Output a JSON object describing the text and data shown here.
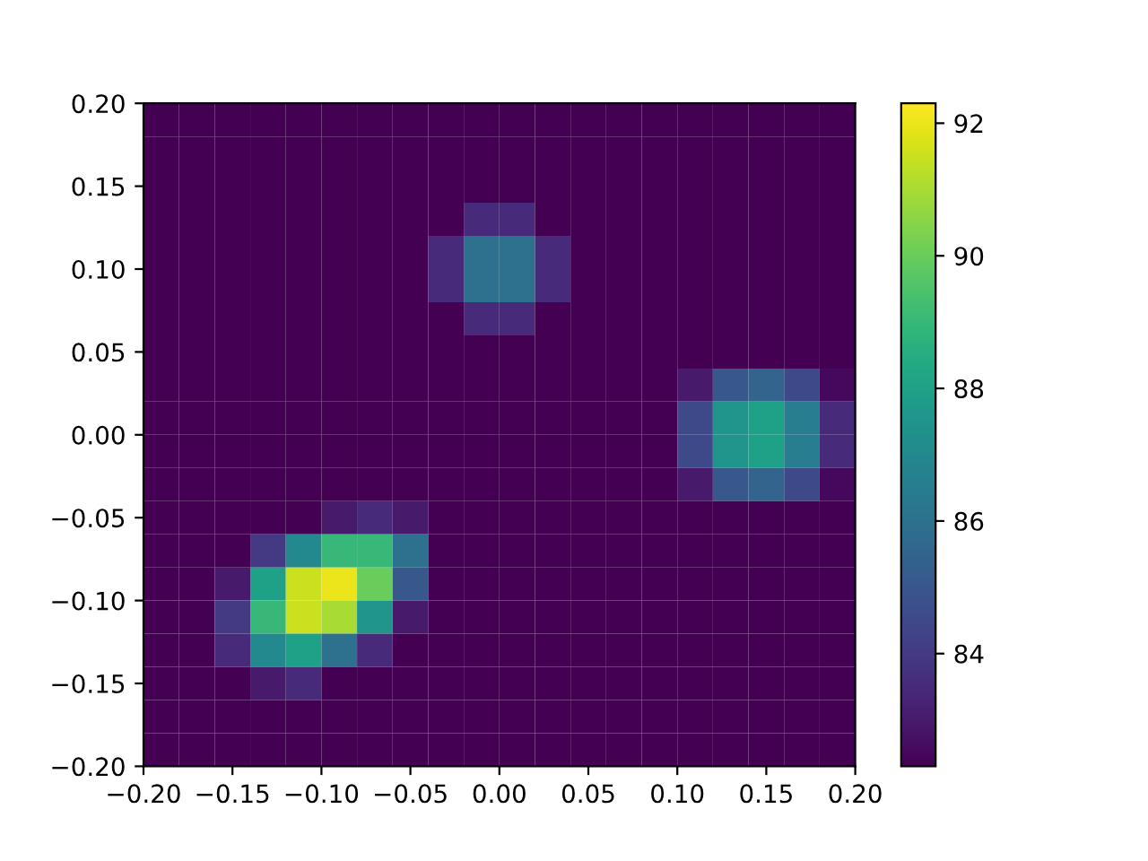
{
  "chart_data": {
    "type": "heatmap",
    "xlim": [
      -0.2,
      0.2
    ],
    "ylim": [
      -0.2,
      0.2
    ],
    "xticks": [
      {
        "value": -0.2,
        "label": "−0.20"
      },
      {
        "value": -0.15,
        "label": "−0.15"
      },
      {
        "value": -0.1,
        "label": "−0.10"
      },
      {
        "value": -0.05,
        "label": "−0.05"
      },
      {
        "value": 0,
        "label": "0.00"
      },
      {
        "value": 0.05,
        "label": "0.05"
      },
      {
        "value": 0.1,
        "label": "0.10"
      },
      {
        "value": 0.15,
        "label": "0.15"
      },
      {
        "value": 0.2,
        "label": "0.20"
      }
    ],
    "yticks": [
      {
        "value": -0.2,
        "label": "−0.20"
      },
      {
        "value": -0.15,
        "label": "−0.15"
      },
      {
        "value": -0.1,
        "label": "−0.10"
      },
      {
        "value": -0.05,
        "label": "−0.05"
      },
      {
        "value": 0,
        "label": "0.00"
      },
      {
        "value": 0.05,
        "label": "0.05"
      },
      {
        "value": 0.1,
        "label": "0.10"
      },
      {
        "value": 0.15,
        "label": "0.15"
      },
      {
        "value": 0.2,
        "label": "0.20"
      }
    ],
    "clim": [
      82.3,
      92.3
    ],
    "cticks": [
      84,
      86,
      88,
      90,
      92
    ],
    "cells": [
      [
        82.3,
        82.3,
        82.3,
        82.3,
        82.3,
        82.3,
        82.3,
        82.3,
        82.3,
        82.3,
        82.3,
        82.3,
        82.3,
        82.3,
        82.3,
        82.3,
        82.3,
        82.3,
        82.3,
        82.3
      ],
      [
        82.3,
        82.3,
        82.3,
        82.3,
        82.3,
        82.3,
        82.3,
        82.3,
        82.3,
        82.3,
        82.3,
        82.3,
        82.3,
        82.3,
        82.3,
        82.3,
        82.3,
        82.3,
        82.3,
        82.3
      ],
      [
        82.3,
        82.3,
        82.3,
        82.3,
        82.3,
        82.3,
        82.3,
        82.3,
        82.3,
        82.3,
        82.3,
        82.3,
        82.3,
        82.3,
        82.3,
        82.3,
        82.3,
        82.3,
        82.3,
        82.3
      ],
      [
        82.3,
        82.3,
        82.3,
        82.3,
        82.3,
        82.3,
        82.3,
        82.3,
        82.3,
        83.5,
        83.5,
        82.3,
        82.3,
        82.3,
        82.3,
        82.3,
        82.3,
        82.3,
        82.3,
        82.3
      ],
      [
        82.3,
        82.3,
        82.3,
        82.3,
        82.3,
        82.3,
        82.3,
        82.3,
        83.5,
        86,
        86,
        83.5,
        82.3,
        82.3,
        82.3,
        82.3,
        82.3,
        82.3,
        82.3,
        82.3
      ],
      [
        82.3,
        82.3,
        82.3,
        82.3,
        82.3,
        82.3,
        82.3,
        82.3,
        83.5,
        86,
        86,
        83.5,
        82.3,
        82.3,
        82.3,
        82.3,
        82.3,
        82.3,
        82.3,
        82.3
      ],
      [
        82.3,
        82.3,
        82.3,
        82.3,
        82.3,
        82.3,
        82.3,
        82.3,
        82.3,
        83.5,
        83.5,
        82.3,
        82.3,
        82.3,
        82.3,
        82.3,
        82.3,
        82.3,
        82.3,
        82.3
      ],
      [
        82.3,
        82.3,
        82.3,
        82.3,
        82.3,
        82.3,
        82.3,
        82.3,
        82.3,
        82.3,
        82.3,
        82.3,
        82.3,
        82.3,
        82.3,
        82.3,
        82.3,
        82.3,
        82.3,
        82.3
      ],
      [
        82.3,
        82.3,
        82.3,
        82.3,
        82.3,
        82.3,
        82.3,
        82.3,
        82.3,
        82.3,
        82.3,
        82.3,
        82.3,
        82.3,
        82.3,
        83,
        85,
        85.5,
        84.5,
        82.5
      ],
      [
        82.3,
        82.3,
        82.3,
        82.3,
        82.3,
        82.3,
        82.3,
        82.3,
        82.3,
        82.3,
        82.3,
        82.3,
        82.3,
        82.3,
        82.3,
        84.5,
        87.5,
        88,
        86.5,
        83.5
      ],
      [
        82.3,
        82.3,
        82.3,
        82.3,
        82.3,
        82.3,
        82.3,
        82.3,
        82.3,
        82.3,
        82.3,
        82.3,
        82.3,
        82.3,
        82.3,
        84.5,
        87.5,
        88,
        86.5,
        83.5
      ],
      [
        82.3,
        82.3,
        82.3,
        82.3,
        82.3,
        82.3,
        82.3,
        82.3,
        82.3,
        82.3,
        82.3,
        82.3,
        82.3,
        82.3,
        82.3,
        83,
        85,
        85.5,
        84.5,
        82.5
      ],
      [
        82.3,
        82.3,
        82.3,
        82.3,
        82.3,
        83,
        83.5,
        83,
        82.3,
        82.3,
        82.3,
        82.3,
        82.3,
        82.3,
        82.3,
        82.3,
        82.3,
        82.3,
        82.3,
        82.3
      ],
      [
        82.3,
        82.3,
        82.3,
        84,
        87,
        89,
        89,
        86,
        82.3,
        82.3,
        82.3,
        82.3,
        82.3,
        82.3,
        82.3,
        82.3,
        82.3,
        82.3,
        82.3,
        82.3
      ],
      [
        82.3,
        82.3,
        83,
        88,
        91.5,
        92,
        90,
        85,
        82.3,
        82.3,
        82.3,
        82.3,
        82.3,
        82.3,
        82.3,
        82.3,
        82.3,
        82.3,
        82.3,
        82.3
      ],
      [
        82.3,
        82.3,
        84,
        89,
        91.5,
        91,
        87.5,
        83,
        82.3,
        82.3,
        82.3,
        82.3,
        82.3,
        82.3,
        82.3,
        82.3,
        82.3,
        82.3,
        82.3,
        82.3
      ],
      [
        82.3,
        82.3,
        83.5,
        87,
        88,
        86,
        83.5,
        82.3,
        82.3,
        82.3,
        82.3,
        82.3,
        82.3,
        82.3,
        82.3,
        82.3,
        82.3,
        82.3,
        82.3,
        82.3
      ],
      [
        82.3,
        82.3,
        82.3,
        83,
        83.5,
        82.3,
        82.3,
        82.3,
        82.3,
        82.3,
        82.3,
        82.3,
        82.3,
        82.3,
        82.3,
        82.3,
        82.3,
        82.3,
        82.3,
        82.3
      ],
      [
        82.3,
        82.3,
        82.3,
        82.3,
        82.3,
        82.3,
        82.3,
        82.3,
        82.3,
        82.3,
        82.3,
        82.3,
        82.3,
        82.3,
        82.3,
        82.3,
        82.3,
        82.3,
        82.3,
        82.3
      ],
      [
        82.3,
        82.3,
        82.3,
        82.3,
        82.3,
        82.3,
        82.3,
        82.3,
        82.3,
        82.3,
        82.3,
        82.3,
        82.3,
        82.3,
        82.3,
        82.3,
        82.3,
        82.3,
        82.3,
        82.3
      ]
    ]
  }
}
